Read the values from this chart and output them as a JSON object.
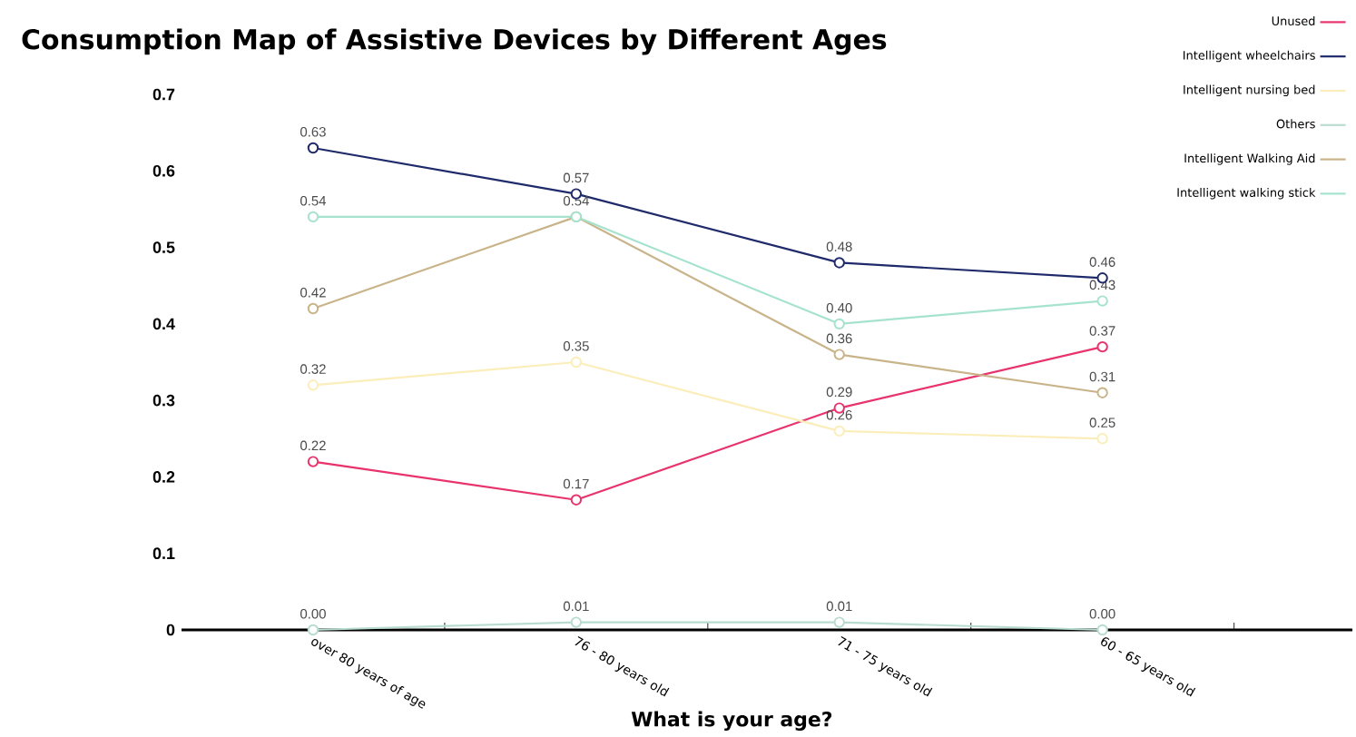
{
  "chart_data": {
    "type": "line",
    "title": "Consumption Map of Assistive Devices by Different Ages",
    "xlabel": "What is your age?",
    "categories": [
      "over 80 years of age",
      "76 - 80 years old",
      "71 - 75 years old",
      "60 - 65 years old"
    ],
    "ylim": [
      0,
      0.7
    ],
    "yticks": [
      {
        "value": 0,
        "label": "0"
      },
      0.1,
      0.2,
      0.3,
      0.4,
      0.5,
      0.6,
      0.7
    ],
    "grid": false,
    "legend": "top right",
    "marker": "circle",
    "line_style": "solid",
    "series": [
      {
        "name": "Unused",
        "color": "#e8336d",
        "values": [
          0.22,
          0.17,
          0.29,
          0.37
        ],
        "value_labels": [
          "0.22",
          "0.17",
          "0.29",
          "0.37"
        ]
      },
      {
        "name": "Intelligent wheelchairs",
        "color": "#1f2a6b",
        "values": [
          0.63,
          0.57,
          0.48,
          0.46
        ],
        "value_labels": [
          "0.63",
          "0.57",
          "0.48",
          "0.46"
        ]
      },
      {
        "name": "Intelligent nursing bed",
        "color": "#fbeebb",
        "values": [
          0.32,
          0.35,
          0.26,
          0.25
        ],
        "value_labels": [
          "0.32",
          "0.35",
          "0.26",
          "0.25"
        ]
      },
      {
        "name": "Others",
        "color": "#b8dccf",
        "values": [
          0.0,
          0.01,
          0.01,
          0.0
        ],
        "value_labels": [
          "0.00",
          "0.01",
          "0.01",
          "0.00"
        ]
      },
      {
        "name": "Intelligent Walking Aid",
        "color": "#c9b48a",
        "values": [
          0.42,
          0.54,
          0.36,
          0.31
        ],
        "value_labels": [
          "0.42",
          null,
          "0.36",
          "0.31"
        ]
      },
      {
        "name": "Intelligent walking stick",
        "color": "#a6e3cf",
        "values": [
          0.54,
          0.54,
          0.4,
          0.43
        ],
        "value_labels": [
          "0.54",
          "0.54",
          "0.40",
          "0.43"
        ]
      }
    ]
  }
}
